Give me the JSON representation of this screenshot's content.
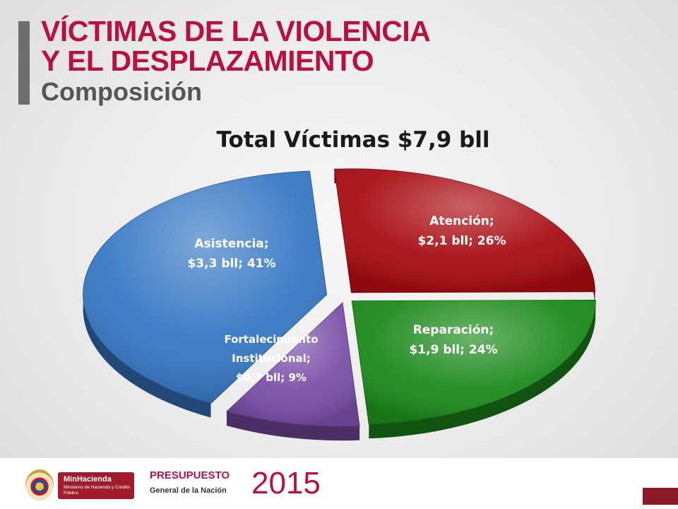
{
  "header": {
    "title_line1": "VÍCTIMAS DE LA VIOLENCIA",
    "title_line2": "Y EL DESPLAZAMIENTO",
    "subtitle": "Composición"
  },
  "chart_data": {
    "type": "pie",
    "title": "Total Víctimas $7,9 bll",
    "unit": "bll",
    "total": 7.9,
    "slices": [
      {
        "name": "Atención",
        "value": 2.1,
        "percent": 26,
        "color": "#a80c12",
        "label_lines": [
          "Atención;",
          "$2,1 bll; 26%"
        ]
      },
      {
        "name": "Reparación",
        "value": 1.9,
        "percent": 24,
        "color": "#1c8a1c",
        "label_lines": [
          "Reparación;",
          "$1,9 bll; 24%"
        ]
      },
      {
        "name": "Fortalecimiento Institucional",
        "value": 0.7,
        "percent": 9,
        "color": "#7a4fa8",
        "label_lines": [
          "Fortalecimiento",
          "Institucional;",
          "$0,7 bll; 9%"
        ]
      },
      {
        "name": "Asistencia",
        "value": 3.3,
        "percent": 41,
        "color": "#3778c4",
        "label_lines": [
          "Asistencia;",
          "$3,3 bll; 41%"
        ]
      }
    ]
  },
  "footer": {
    "brand_name": "MinHacienda",
    "brand_subtitle": "Ministerio de Hacienda y Crédito Público",
    "presupuesto": "PRESUPUESTO",
    "general": "General de la Nación",
    "year": "2015"
  }
}
